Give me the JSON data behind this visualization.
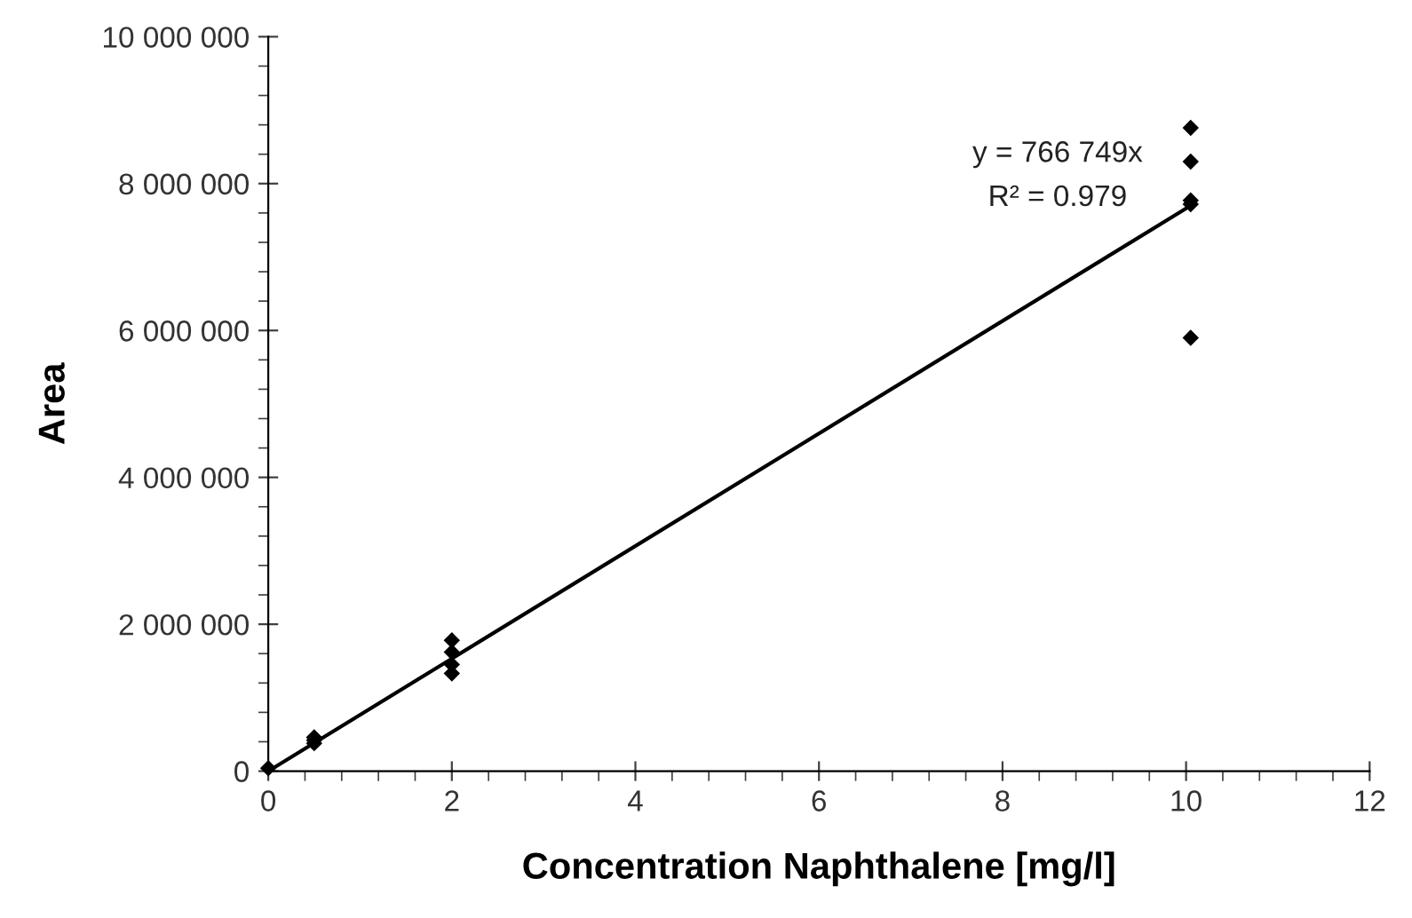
{
  "chart_data": {
    "type": "scatter",
    "xlabel": "Concentration Naphthalene [mg/l]",
    "ylabel": "Area",
    "annotations": [
      "y = 766 749x",
      "R² = 0.979"
    ],
    "marker": "diamond",
    "grid": false,
    "legend": false,
    "xlim": [
      0,
      12
    ],
    "ylim": [
      0,
      10000000
    ],
    "xticks": [
      0,
      {
        "value": 0.4,
        "label": null
      },
      {
        "value": 0.8,
        "label": null
      },
      {
        "value": 1.2,
        "label": null
      },
      {
        "value": 1.6,
        "label": null
      },
      2,
      {
        "value": 2.4,
        "label": null
      },
      {
        "value": 2.8,
        "label": null
      },
      {
        "value": 3.2,
        "label": null
      },
      {
        "value": 3.6,
        "label": null
      },
      4,
      {
        "value": 4.4,
        "label": null
      },
      {
        "value": 4.8,
        "label": null
      },
      {
        "value": 5.2,
        "label": null
      },
      {
        "value": 5.6,
        "label": null
      },
      6,
      {
        "value": 6.4,
        "label": null
      },
      {
        "value": 6.8,
        "label": null
      },
      {
        "value": 7.2,
        "label": null
      },
      {
        "value": 7.6,
        "label": null
      },
      8,
      {
        "value": 8.4,
        "label": null
      },
      {
        "value": 8.8,
        "label": null
      },
      {
        "value": 9.2,
        "label": null
      },
      {
        "value": 9.6,
        "label": null
      },
      10,
      {
        "value": 10.4,
        "label": null
      },
      {
        "value": 10.8,
        "label": null
      },
      {
        "value": 11.2,
        "label": null
      },
      {
        "value": 11.6,
        "label": null
      },
      12
    ],
    "yticks": [
      {
        "value": 0,
        "label": "0"
      },
      {
        "value": 400000,
        "label": null
      },
      {
        "value": 800000,
        "label": null
      },
      {
        "value": 1200000,
        "label": null
      },
      {
        "value": 1600000,
        "label": null
      },
      {
        "value": 2000000,
        "label": "2 000 000"
      },
      {
        "value": 2400000,
        "label": null
      },
      {
        "value": 2800000,
        "label": null
      },
      {
        "value": 3200000,
        "label": null
      },
      {
        "value": 3600000,
        "label": null
      },
      {
        "value": 4000000,
        "label": "4 000 000"
      },
      {
        "value": 4400000,
        "label": null
      },
      {
        "value": 4800000,
        "label": null
      },
      {
        "value": 5200000,
        "label": null
      },
      {
        "value": 5600000,
        "label": null
      },
      {
        "value": 6000000,
        "label": "6 000 000"
      },
      {
        "value": 6400000,
        "label": null
      },
      {
        "value": 6800000,
        "label": null
      },
      {
        "value": 7200000,
        "label": null
      },
      {
        "value": 7600000,
        "label": null
      },
      {
        "value": 8000000,
        "label": "8 000 000"
      },
      {
        "value": 8400000,
        "label": null
      },
      {
        "value": 8800000,
        "label": null
      },
      {
        "value": 9200000,
        "label": null
      },
      {
        "value": 9600000,
        "label": null
      },
      {
        "value": 10000000,
        "label": "10 000 000"
      }
    ],
    "series": [
      {
        "color": "#000000",
        "x": [
          0,
          0.5,
          0.5,
          0.5,
          2,
          2,
          2,
          2,
          10.05,
          10.05,
          10.05,
          10.05,
          10.05
        ],
        "values": [
          40000,
          460000,
          420000,
          380000,
          1780000,
          1620000,
          1450000,
          1330000,
          8760000,
          8300000,
          7770000,
          7720000,
          5900000
        ]
      },
      {
        "type": "line",
        "color": "#000000",
        "marker": "none",
        "x": [
          0,
          10.05
        ],
        "values": [
          0,
          7700000
        ]
      }
    ]
  }
}
